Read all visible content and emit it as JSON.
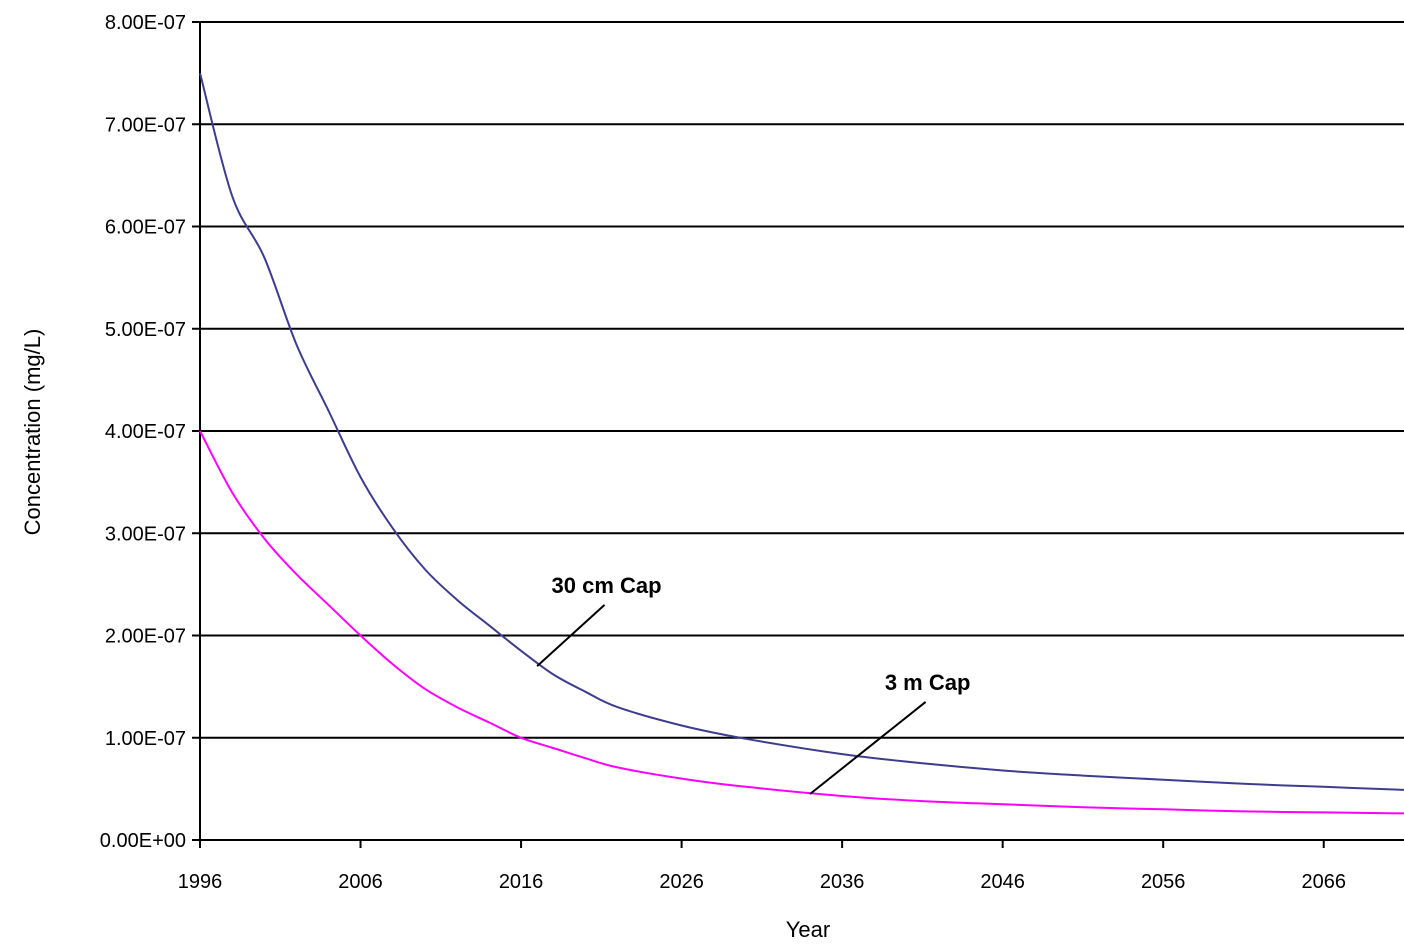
{
  "chart_data": {
    "type": "line",
    "title": "",
    "xlabel": "Year",
    "ylabel": "Concentration (mg/L)",
    "xlim": [
      1996,
      2071
    ],
    "ylim": [
      0,
      8e-07
    ],
    "grid": true,
    "x_ticks": [
      {
        "value": 1996,
        "label": "1996"
      },
      {
        "value": 2006,
        "label": "2006"
      },
      {
        "value": 2016,
        "label": "2016"
      },
      {
        "value": 2026,
        "label": "2026"
      },
      {
        "value": 2036,
        "label": "2036"
      },
      {
        "value": 2046,
        "label": "2046"
      },
      {
        "value": 2056,
        "label": "2056"
      },
      {
        "value": 2066,
        "label": "2066"
      }
    ],
    "y_ticks": [
      {
        "value": 0,
        "label": "0.00E+00"
      },
      {
        "value": 1e-07,
        "label": "1.00E-07"
      },
      {
        "value": 2e-07,
        "label": "2.00E-07"
      },
      {
        "value": 3e-07,
        "label": "3.00E-07"
      },
      {
        "value": 4e-07,
        "label": "4.00E-07"
      },
      {
        "value": 5e-07,
        "label": "5.00E-07"
      },
      {
        "value": 6e-07,
        "label": "6.00E-07"
      },
      {
        "value": 7e-07,
        "label": "7.00E-07"
      },
      {
        "value": 8e-07,
        "label": "8.00E-07"
      }
    ],
    "series": [
      {
        "name": "30 cm Cap",
        "color": "#3d3d8f",
        "x": [
          1996,
          1998,
          2000,
          2002,
          2004,
          2006,
          2008,
          2010,
          2012,
          2014,
          2016,
          2018,
          2020,
          2022,
          2026,
          2030,
          2036,
          2041,
          2046,
          2051,
          2056,
          2061,
          2066,
          2071
        ],
        "y": [
          7.5e-07,
          6.3e-07,
          5.7e-07,
          4.85e-07,
          4.2e-07,
          3.55e-07,
          3.05e-07,
          2.65e-07,
          2.35e-07,
          2.1e-07,
          1.85e-07,
          1.62e-07,
          1.45e-07,
          1.3e-07,
          1.12e-07,
          9.9e-08,
          8.4e-08,
          7.5e-08,
          6.8e-08,
          6.3e-08,
          5.9e-08,
          5.5e-08,
          5.2e-08,
          4.9e-08
        ]
      },
      {
        "name": "3 m Cap",
        "color": "#ff00ff",
        "x": [
          1996,
          1998,
          2000,
          2002,
          2004,
          2006,
          2008,
          2010,
          2012,
          2014,
          2016,
          2018,
          2020,
          2022,
          2026,
          2030,
          2036,
          2041,
          2046,
          2051,
          2056,
          2061,
          2066,
          2071
        ],
        "y": [
          4e-07,
          3.4e-07,
          2.95e-07,
          2.6e-07,
          2.3e-07,
          2e-07,
          1.72e-07,
          1.48e-07,
          1.3e-07,
          1.15e-07,
          1e-07,
          9e-08,
          8e-08,
          7.1e-08,
          6e-08,
          5.2e-08,
          4.3e-08,
          3.8e-08,
          3.5e-08,
          3.2e-08,
          3e-08,
          2.8e-08,
          2.7e-08,
          2.6e-08
        ]
      }
    ],
    "annotations": [
      {
        "text": "30 cm Cap",
        "target_x": 2017,
        "target_y": 1.7e-07,
        "label_x": 2021.2,
        "label_y": 2.3e-07
      },
      {
        "text": "3 m Cap",
        "target_x": 2034,
        "target_y": 4.5e-08,
        "label_x": 2041.2,
        "label_y": 1.35e-07
      }
    ]
  }
}
